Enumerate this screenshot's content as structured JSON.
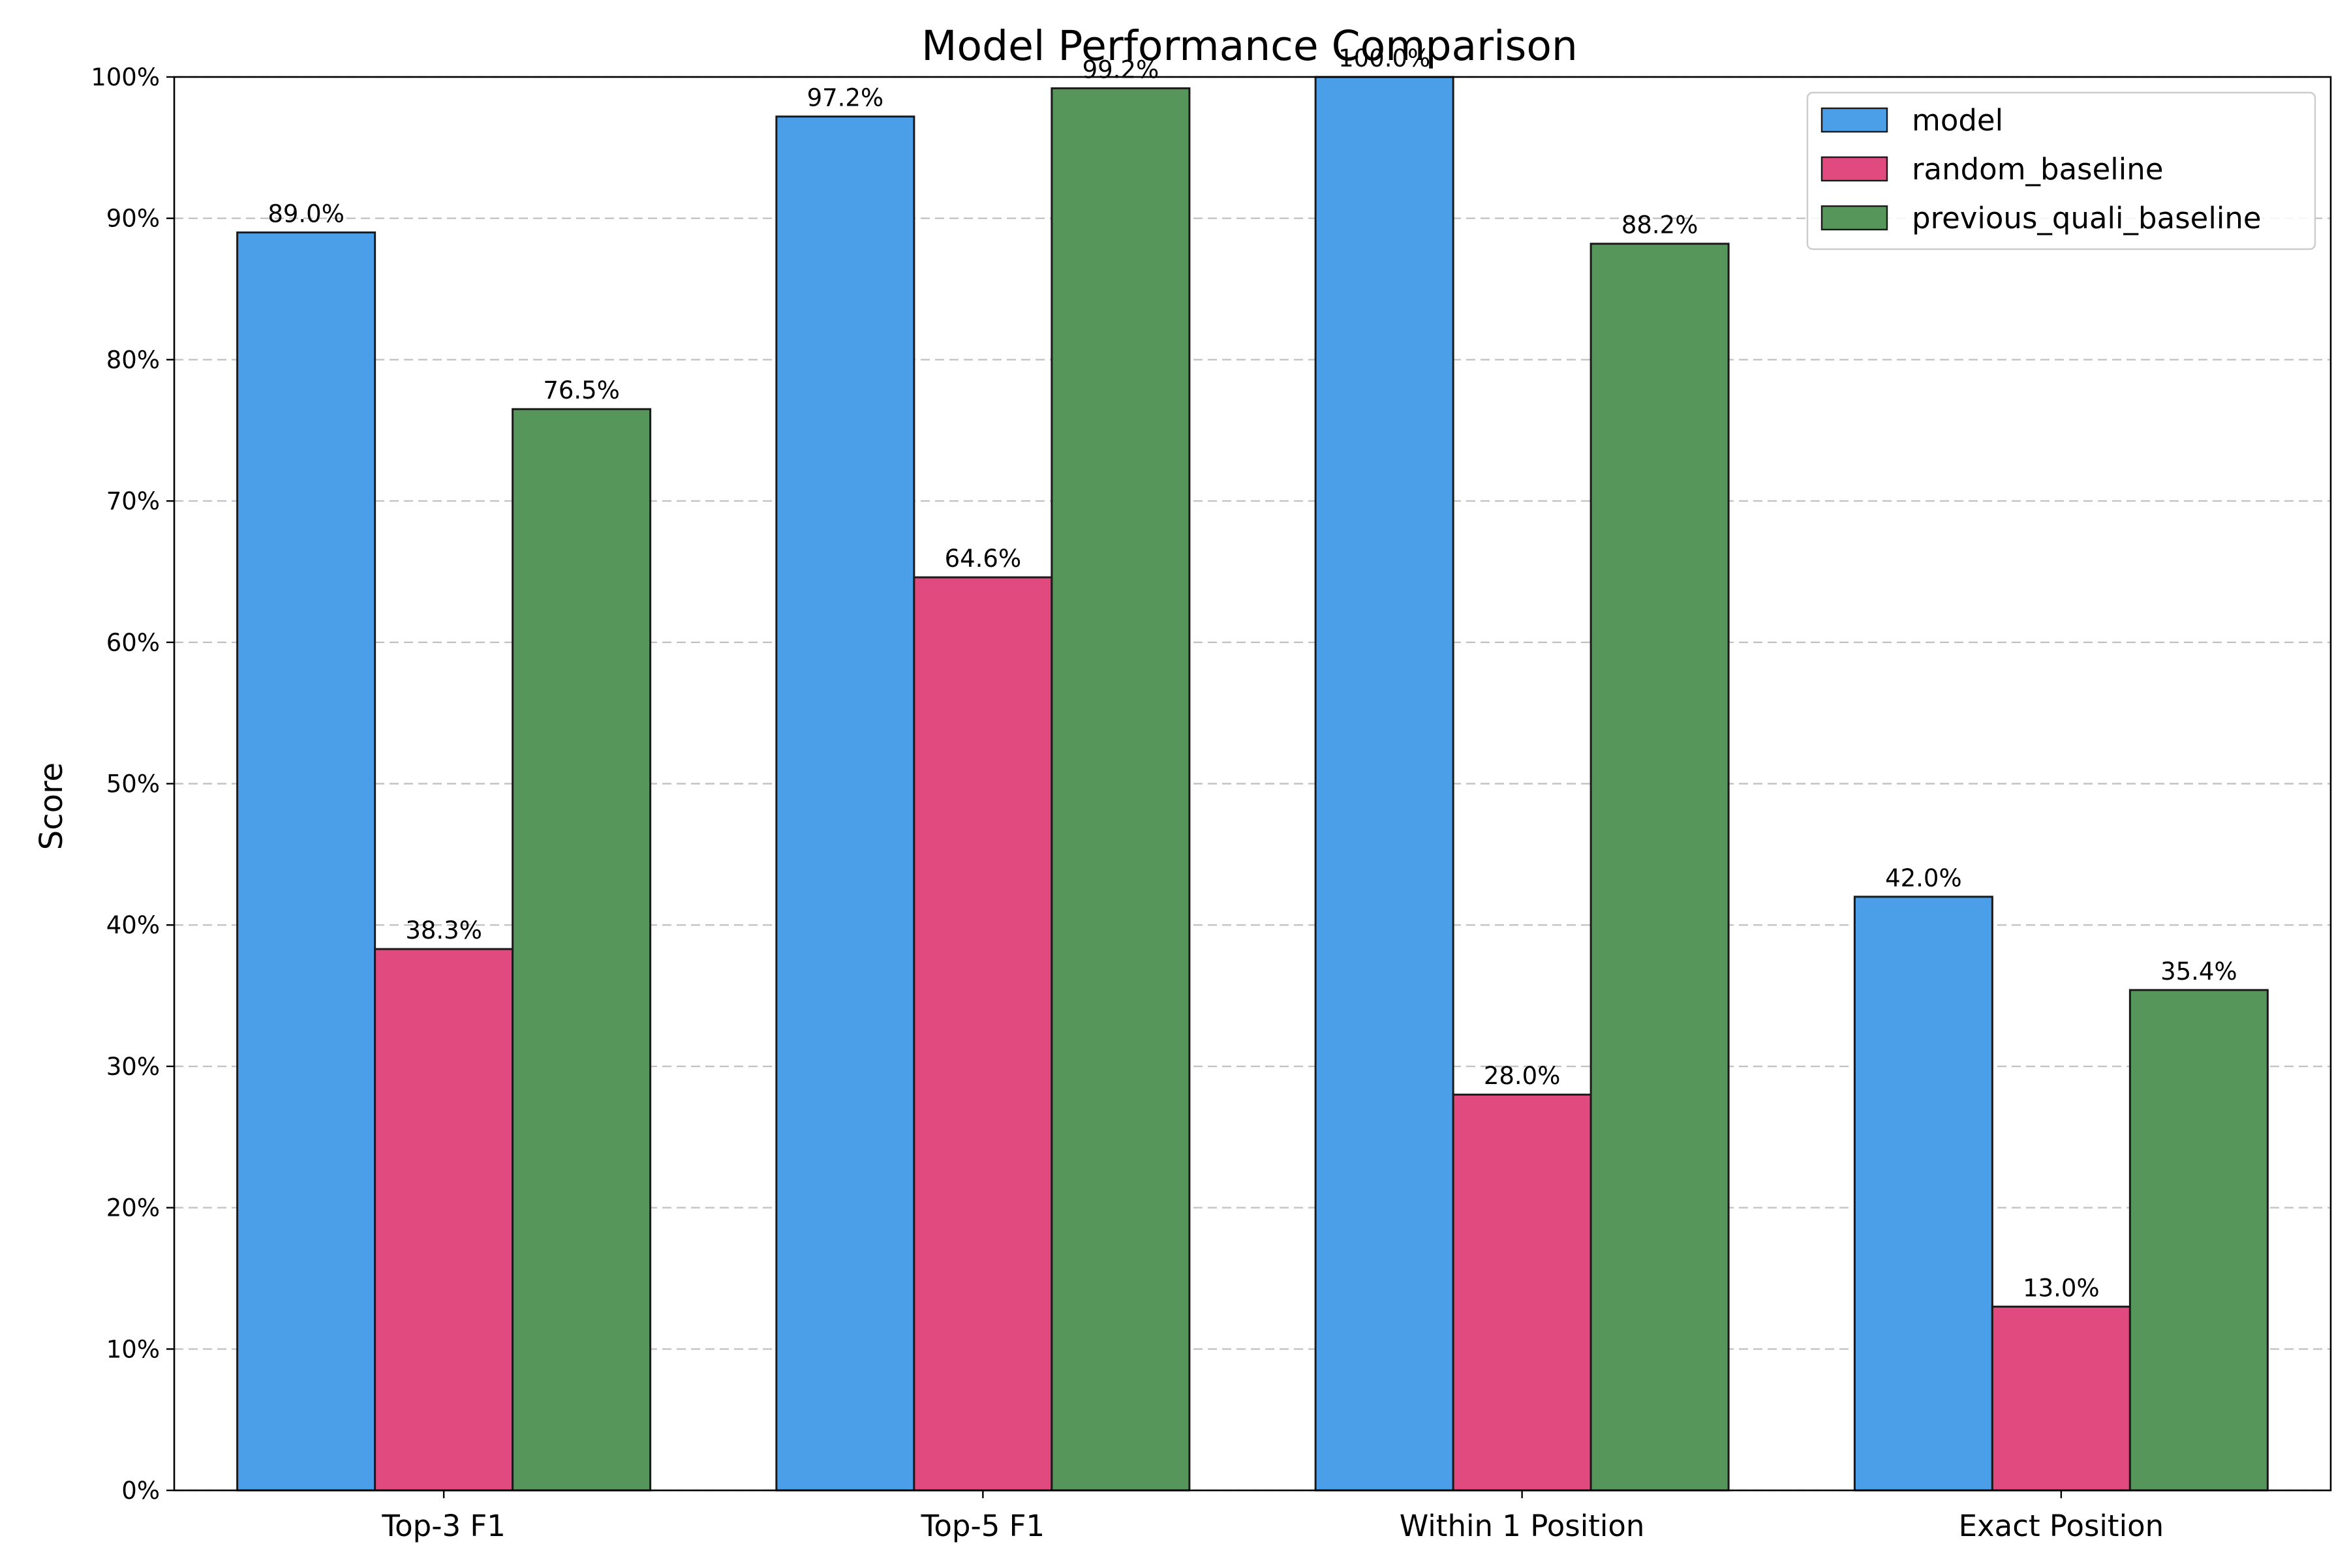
{
  "chart_data": {
    "type": "bar",
    "title": "Model Performance Comparison",
    "xlabel": "",
    "ylabel": "Score",
    "ylim": [
      0,
      100
    ],
    "y_tick_values": [
      0,
      10,
      20,
      30,
      40,
      50,
      60,
      70,
      80,
      90,
      100
    ],
    "y_tick_labels": [
      "0%",
      "10%",
      "20%",
      "30%",
      "40%",
      "50%",
      "60%",
      "70%",
      "80%",
      "90%",
      "100%"
    ],
    "grid": "horizontal dashed",
    "legend_position": "top-right",
    "categories": [
      "Top-3 F1",
      "Top-5 F1",
      "Within 1 Position",
      "Exact Position"
    ],
    "series": [
      {
        "name": "model",
        "color": "#4a9fe8",
        "values": [
          89.0,
          97.2,
          100.0,
          42.0
        ],
        "labels": [
          "89.0%",
          "97.2%",
          "100.0%",
          "42.0%"
        ]
      },
      {
        "name": "random_baseline",
        "color": "#e04a7e",
        "values": [
          38.3,
          64.6,
          28.0,
          13.0
        ],
        "labels": [
          "38.3%",
          "64.6%",
          "28.0%",
          "13.0%"
        ]
      },
      {
        "name": "previous_quali_baseline",
        "color": "#56965b",
        "values": [
          76.5,
          99.2,
          88.2,
          35.4
        ],
        "labels": [
          "76.5%",
          "99.2%",
          "88.2%",
          "35.4%"
        ]
      }
    ]
  }
}
